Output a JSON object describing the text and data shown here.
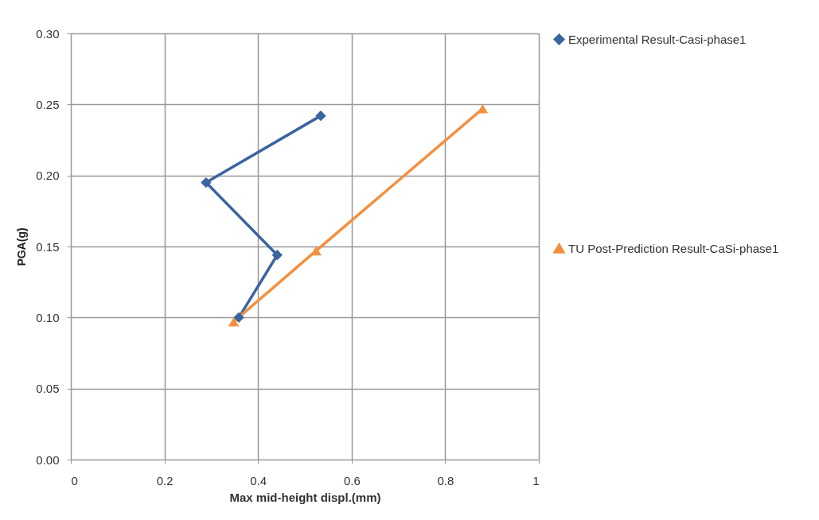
{
  "chart_data": {
    "type": "line",
    "xlabel": "Max mid-height displ.(mm)",
    "ylabel": "PGA(g)",
    "xlim": [
      0,
      1
    ],
    "xticks": [
      0,
      0.2,
      0.4,
      0.6,
      0.8,
      1
    ],
    "ylim": [
      0,
      0.3
    ],
    "yticks": [
      {
        "value": 0,
        "label": "0.00"
      },
      {
        "value": 0.05,
        "label": "0.05"
      },
      {
        "value": 0.1,
        "label": "0.10"
      },
      {
        "value": 0.15,
        "label": "0.15"
      },
      {
        "value": 0.2,
        "label": "0.20"
      },
      {
        "value": 0.25,
        "label": "0.25"
      },
      {
        "value": 0.3,
        "label": "0.30"
      }
    ],
    "grid": true,
    "legend": "right",
    "series": [
      {
        "name": "Experimental Result-Casi-phase1",
        "color": "#3b65a0",
        "marker": "diamond",
        "x": [
          0.359,
          0.441,
          0.289,
          0.534
        ],
        "values": [
          0.1,
          0.144,
          0.195,
          0.242
        ]
      },
      {
        "name": "TU Post-Prediction Result-CaSi-phase1",
        "color": "#f39040",
        "marker": "triangle",
        "x": [
          0.348,
          0.524,
          0.88
        ],
        "values": [
          0.097,
          0.147,
          0.247
        ]
      }
    ]
  }
}
